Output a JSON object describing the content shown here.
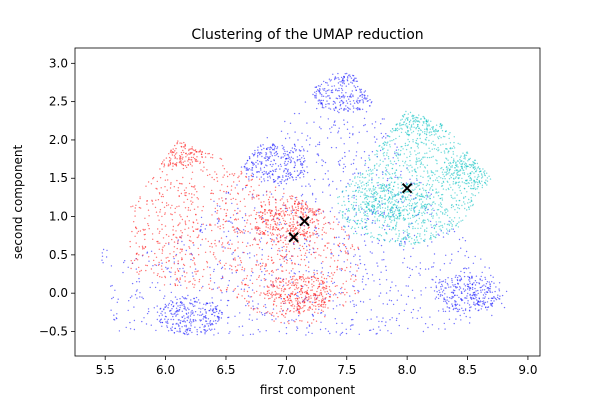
{
  "chart_data": {
    "type": "scatter",
    "title": "Clustering of the UMAP reduction",
    "xlabel": "first component",
    "ylabel": "second component",
    "xlim": [
      5.25,
      9.1
    ],
    "ylim": [
      -0.82,
      3.2
    ],
    "xticks": [
      "5.5",
      "6.0",
      "6.5",
      "7.0",
      "7.5",
      "8.0",
      "8.5",
      "9.0"
    ],
    "yticks": [
      "−0.5",
      "0.0",
      "0.5",
      "1.0",
      "1.5",
      "2.0",
      "2.5",
      "3.0"
    ],
    "grid": false,
    "legend": "none",
    "point_markers": "dots",
    "center_marker": "x",
    "series": [
      {
        "color": "#0000ff",
        "region_outline": [
          [
            5.55,
            -0.5
          ],
          [
            5.45,
            0.6
          ],
          [
            5.8,
            0.5
          ],
          [
            6.2,
            0.8
          ],
          [
            6.5,
            1.4
          ],
          [
            6.7,
            1.8
          ],
          [
            7.0,
            2.3
          ],
          [
            7.3,
            2.8
          ],
          [
            7.5,
            3.0
          ],
          [
            7.8,
            2.3
          ],
          [
            8.2,
            1.3
          ],
          [
            8.6,
            0.5
          ],
          [
            8.9,
            -0.1
          ],
          [
            8.7,
            -0.3
          ],
          [
            8.3,
            -0.5
          ],
          [
            7.5,
            -0.55
          ],
          [
            6.8,
            -0.55
          ],
          [
            6.0,
            -0.55
          ]
        ],
        "dense_areas": [
          [
            6.9,
            1.7
          ],
          [
            7.5,
            2.6
          ],
          [
            6.2,
            -0.3
          ],
          [
            8.5,
            0.0
          ]
        ]
      },
      {
        "color": "#ff0000",
        "region_outline": [
          [
            5.7,
            1.1
          ],
          [
            6.1,
            2.0
          ],
          [
            6.4,
            1.8
          ],
          [
            6.9,
            1.4
          ],
          [
            7.4,
            1.0
          ],
          [
            7.6,
            0.6
          ],
          [
            7.6,
            0.0
          ],
          [
            7.3,
            -0.4
          ],
          [
            6.9,
            -0.4
          ],
          [
            6.5,
            0.0
          ],
          [
            6.0,
            0.1
          ],
          [
            5.7,
            0.3
          ]
        ],
        "dense_areas": [
          [
            7.1,
            0.0
          ],
          [
            7.0,
            0.9
          ],
          [
            6.1,
            1.9
          ],
          [
            7.3,
            1.3
          ]
        ]
      },
      {
        "color": "#00bfbf",
        "region_outline": [
          [
            7.4,
            1.2
          ],
          [
            7.9,
            2.2
          ],
          [
            8.0,
            2.4
          ],
          [
            8.3,
            2.2
          ],
          [
            8.7,
            1.5
          ],
          [
            8.4,
            0.8
          ],
          [
            8.0,
            0.6
          ],
          [
            7.5,
            0.8
          ]
        ],
        "dense_areas": [
          [
            8.1,
            2.3
          ],
          [
            8.6,
            1.6
          ],
          [
            7.9,
            1.2
          ]
        ]
      }
    ],
    "centers": [
      {
        "x": 8.0,
        "y": 1.37
      },
      {
        "x": 7.15,
        "y": 0.94
      },
      {
        "x": 7.06,
        "y": 0.73
      }
    ]
  }
}
